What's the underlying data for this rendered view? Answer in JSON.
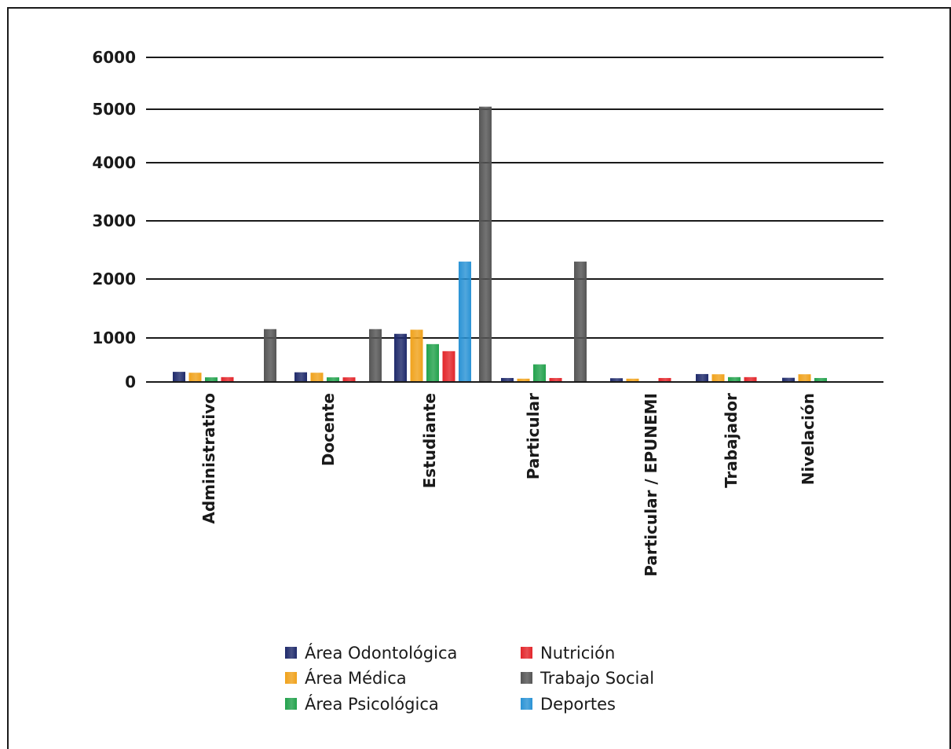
{
  "chart_data": {
    "type": "bar",
    "title": "",
    "xlabel": "",
    "ylabel": "",
    "ylim": [
      0,
      6000
    ],
    "yticks": [
      0,
      1000,
      2000,
      3000,
      4000,
      5000,
      6000
    ],
    "ytick_labels": [
      "0",
      "1000",
      "2000",
      "3000",
      "4000",
      "5000",
      "6000"
    ],
    "grid": "horizontal",
    "legend_position": "bottom",
    "categories": [
      "Administrativo",
      "Docente",
      "Estudiante",
      "Particular",
      "Particular / EPUNEMI",
      "Trabajador",
      "Nivelación"
    ],
    "series": [
      {
        "name": "Área Odontológica",
        "color": "#1f2a6b",
        "values": [
          230,
          220,
          1070,
          90,
          85,
          180,
          95
        ]
      },
      {
        "name": "Área Médica",
        "color": "#f0a21c",
        "values": [
          210,
          210,
          1140,
          75,
          75,
          175,
          175
        ]
      },
      {
        "name": "Área Psicológica",
        "color": "#23a24d",
        "values": [
          105,
          105,
          860,
          400,
          0,
          110,
          90
        ]
      },
      {
        "name": "Nutrición",
        "color": "#e3262b",
        "values": [
          110,
          105,
          700,
          90,
          90,
          110,
          0
        ]
      },
      {
        "name": "Trabajo Social",
        "color": "#555555",
        "values": [
          1150,
          1150,
          5050,
          2300,
          0,
          0,
          0
        ]
      },
      {
        "name": "Deportes",
        "color": "#2a93d5",
        "values": [
          0,
          0,
          2300,
          0,
          0,
          0,
          0
        ]
      }
    ],
    "legend_order": [
      0,
      3,
      1,
      4,
      2,
      5
    ]
  }
}
